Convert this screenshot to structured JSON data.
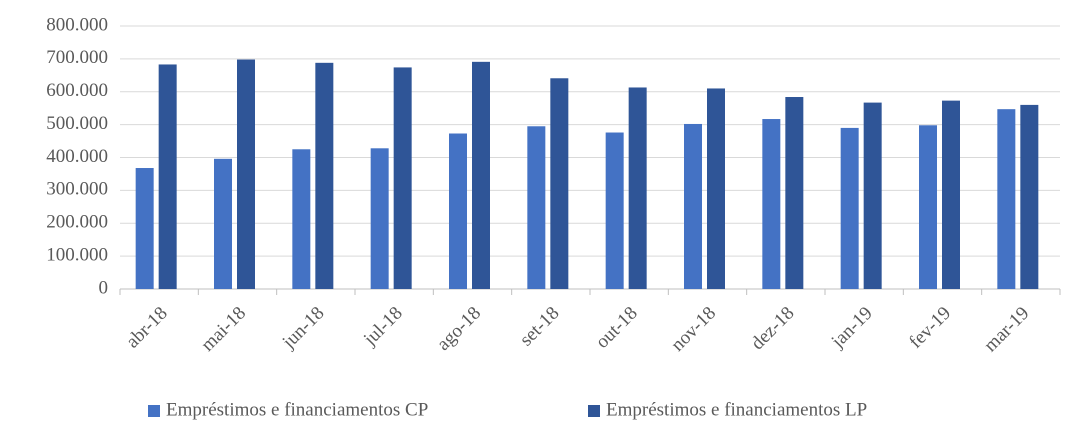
{
  "chart_data": {
    "type": "bar",
    "categories": [
      "abr-18",
      "mai-18",
      "jun-18",
      "jul-18",
      "ago-18",
      "set-18",
      "out-18",
      "nov-18",
      "dez-18",
      "jan-19",
      "fev-19",
      "mar-19"
    ],
    "series": [
      {
        "name": "Empréstimos e financiamentos CP",
        "color": "#4472c4",
        "values": [
          368000,
          396000,
          425000,
          428000,
          473000,
          495000,
          476000,
          502000,
          517000,
          490000,
          498000,
          547000
        ]
      },
      {
        "name": "Empréstimos e financiamentos LP",
        "color": "#2f5597",
        "values": [
          683000,
          698000,
          688000,
          674000,
          691000,
          641000,
          613000,
          610000,
          584000,
          567000,
          573000,
          560000
        ]
      }
    ],
    "ylim": [
      0,
      800000
    ],
    "yticks": [
      0,
      {
        "value": 100000,
        "label": "100.000"
      },
      {
        "value": 200000,
        "label": "200.000"
      },
      {
        "value": 300000,
        "label": "300.000"
      },
      {
        "value": 400000,
        "label": "400.000"
      },
      {
        "value": 500000,
        "label": "500.000"
      },
      {
        "value": 600000,
        "label": "600.000"
      },
      {
        "value": 700000,
        "label": "700.000"
      },
      {
        "value": 800000,
        "label": "800.000"
      }
    ],
    "grid": true,
    "legend": "bottom"
  }
}
